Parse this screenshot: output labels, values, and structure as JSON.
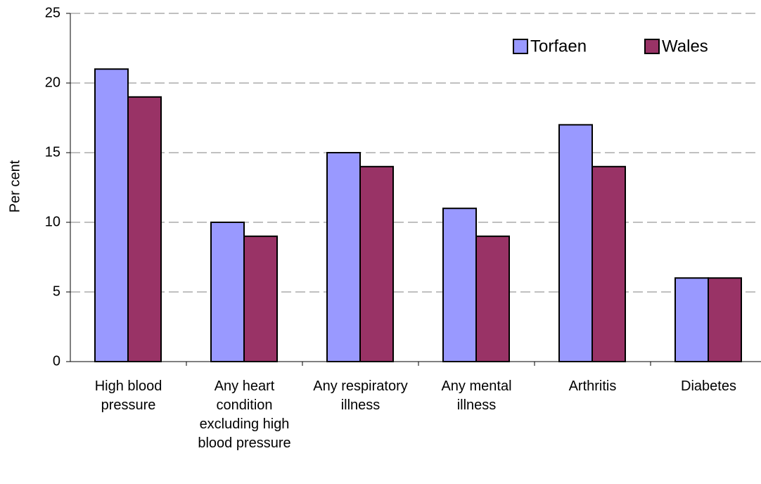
{
  "chart_data": {
    "type": "bar",
    "y_label": "Per cent",
    "categories": [
      "High blood pressure",
      "Any heart condition excluding high blood pressure",
      "Any respiratory illness",
      "Any mental illness",
      "Arthritis",
      "Diabetes"
    ],
    "series": [
      {
        "name": "Torfaen",
        "color": "#9999ff",
        "values": [
          21,
          10,
          15,
          11,
          17,
          6
        ]
      },
      {
        "name": "Wales",
        "color": "#993366",
        "values": [
          19,
          9,
          14,
          9,
          14,
          6
        ]
      }
    ],
    "ylim": [
      0,
      25
    ],
    "yticks": [
      0,
      5,
      10,
      15,
      20,
      25
    ],
    "grid": true,
    "legend": "top-right"
  }
}
